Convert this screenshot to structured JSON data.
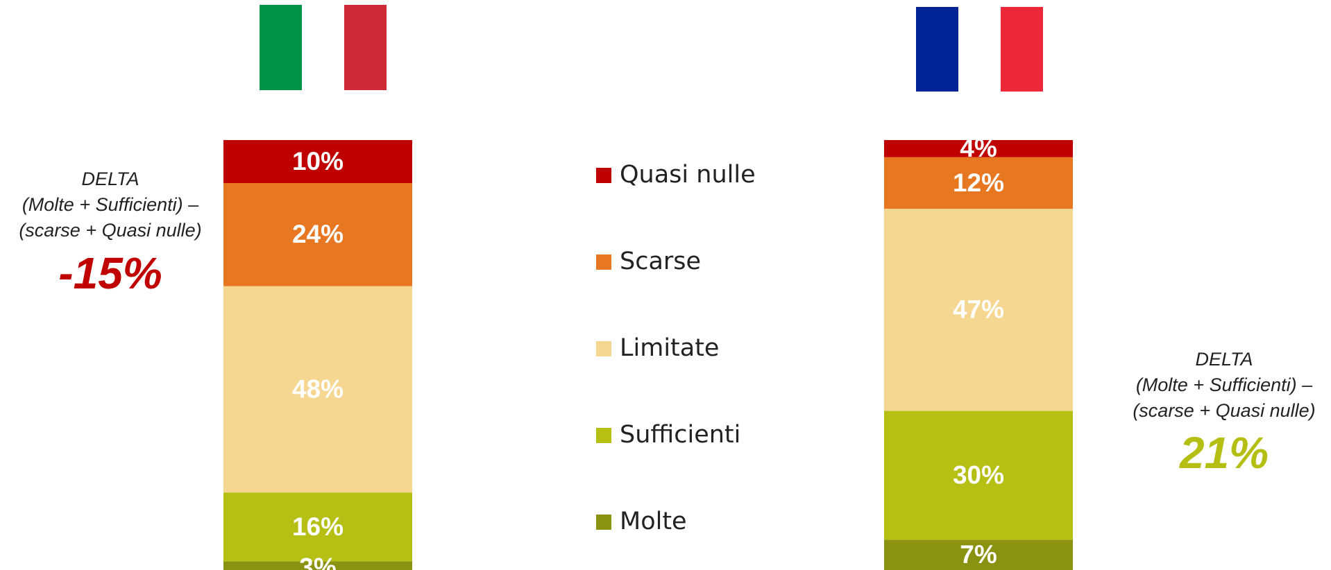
{
  "chart_data": {
    "type": "bar",
    "stacked": true,
    "categories": [
      null,
      null
    ],
    "series": [
      {
        "name": "Molte",
        "color": "#8b9111",
        "values": [
          3,
          7
        ],
        "value_labels": [
          "3%",
          "7%"
        ]
      },
      {
        "name": "Sufficienti",
        "color": "#b6bf14",
        "values": [
          16,
          30
        ],
        "value_labels": [
          "16%",
          "30%"
        ]
      },
      {
        "name": "Limitate",
        "color": "#f5d792",
        "values": [
          48,
          47
        ],
        "value_labels": [
          "48%",
          "47%"
        ]
      },
      {
        "name": "Scarse",
        "color": "#e87722",
        "values": [
          24,
          12
        ],
        "value_labels": [
          "24%",
          "12%"
        ]
      },
      {
        "name": "Quasi nulle",
        "color": "#c00000",
        "values": [
          10,
          4
        ],
        "value_labels": [
          "10%",
          "4%"
        ]
      }
    ],
    "annotations": [
      {
        "text": [
          "DELTA",
          "(Molte + Sufficienti) –",
          "(scarse + Quasi nulle)"
        ],
        "label": "-15%",
        "color": "#c00000"
      },
      {
        "text": [
          "DELTA",
          "(Molte + Sufficienti) –",
          "(scarse + Quasi nulle)"
        ],
        "label": "21%",
        "color": "#b5be12"
      }
    ]
  }
}
